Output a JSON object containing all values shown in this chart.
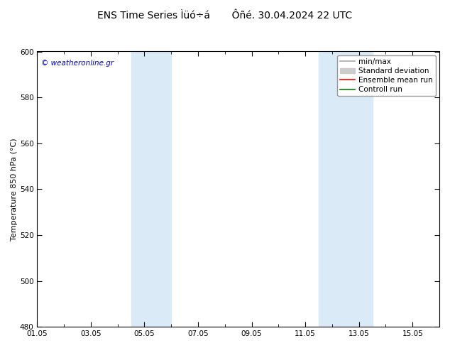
{
  "title": "ENS Time Series Ìüó÷á       Ôñé. 30.04.2024 22 UTC",
  "ylabel": "Temperature 850 hPa (°C)",
  "ylim": [
    480,
    600
  ],
  "yticks": [
    480,
    500,
    520,
    540,
    560,
    580,
    600
  ],
  "xtick_labels": [
    "01.05",
    "03.05",
    "05.05",
    "07.05",
    "09.05",
    "11.05",
    "13.05",
    "15.05"
  ],
  "xtick_positions": [
    0,
    2,
    4,
    6,
    8,
    10,
    12,
    14
  ],
  "xlim": [
    0,
    15
  ],
  "shaded_bands": [
    {
      "x_start": 3.5,
      "x_end": 5.0,
      "color": "#daeaf7"
    },
    {
      "x_start": 10.5,
      "x_end": 12.5,
      "color": "#daeaf7"
    }
  ],
  "legend_items": [
    {
      "label": "min/max",
      "color": "#aaaaaa",
      "lw": 1.2,
      "ls": "-",
      "type": "line"
    },
    {
      "label": "Standard deviation",
      "color": "#cccccc",
      "lw": 6,
      "ls": "-",
      "type": "patch"
    },
    {
      "label": "Ensemble mean run",
      "color": "red",
      "lw": 1.2,
      "ls": "-",
      "type": "line"
    },
    {
      "label": "Controll run",
      "color": "green",
      "lw": 1.2,
      "ls": "-",
      "type": "line"
    }
  ],
  "watermark": "© weatheronline.gr",
  "bg_color": "#ffffff",
  "plot_bg_color": "#ffffff",
  "title_fontsize": 10,
  "tick_fontsize": 7.5,
  "ylabel_fontsize": 8,
  "legend_fontsize": 7.5
}
